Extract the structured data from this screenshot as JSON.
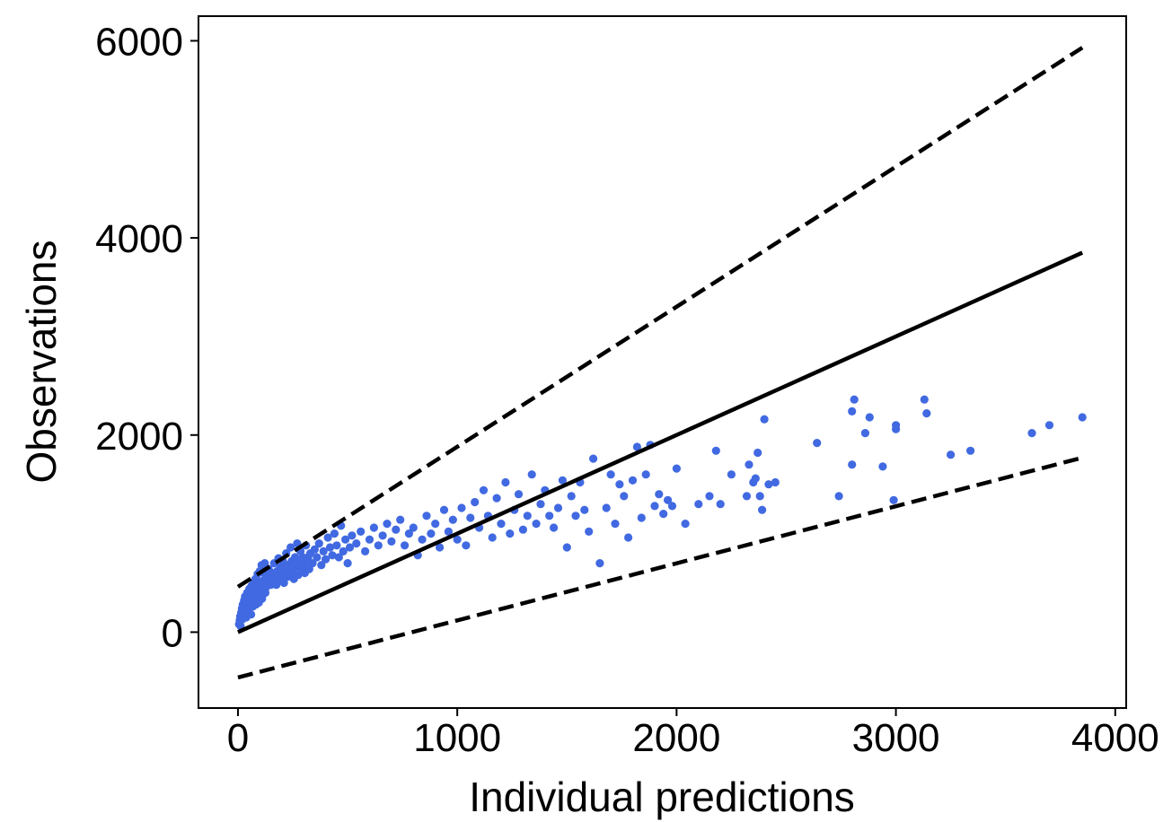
{
  "chart_data": {
    "type": "scatter",
    "title": "",
    "xlabel": "Individual predictions",
    "ylabel": "Observations",
    "xlim": [
      -180,
      4050
    ],
    "ylim": [
      -770,
      6250
    ],
    "xticks": [
      0,
      1000,
      2000,
      3000,
      4000
    ],
    "yticks": [
      0,
      2000,
      4000,
      6000
    ],
    "grid": false,
    "legend": "none",
    "colors": {
      "points": "#4169E1",
      "lines": "#000000"
    },
    "lines": [
      {
        "style": "solid",
        "x": [
          0,
          3850
        ],
        "y": [
          0,
          3850
        ]
      },
      {
        "style": "dashed",
        "x": [
          0,
          3850
        ],
        "y": [
          460,
          5930
        ]
      },
      {
        "style": "dashed",
        "x": [
          0,
          3850
        ],
        "y": [
          -460,
          1770
        ]
      }
    ],
    "points": [
      [
        5,
        80
      ],
      [
        8,
        120
      ],
      [
        10,
        160
      ],
      [
        12,
        60
      ],
      [
        15,
        200
      ],
      [
        18,
        240
      ],
      [
        20,
        130
      ],
      [
        22,
        280
      ],
      [
        25,
        180
      ],
      [
        28,
        320
      ],
      [
        30,
        220
      ],
      [
        32,
        360
      ],
      [
        35,
        260
      ],
      [
        38,
        150
      ],
      [
        40,
        300
      ],
      [
        42,
        400
      ],
      [
        45,
        200
      ],
      [
        48,
        340
      ],
      [
        50,
        250
      ],
      [
        52,
        440
      ],
      [
        55,
        300
      ],
      [
        58,
        380
      ],
      [
        60,
        180
      ],
      [
        62,
        470
      ],
      [
        65,
        350
      ],
      [
        68,
        260
      ],
      [
        70,
        420
      ],
      [
        72,
        500
      ],
      [
        75,
        320
      ],
      [
        78,
        380
      ],
      [
        80,
        540
      ],
      [
        82,
        280
      ],
      [
        85,
        450
      ],
      [
        88,
        360
      ],
      [
        90,
        590
      ],
      [
        92,
        420
      ],
      [
        95,
        300
      ],
      [
        98,
        500
      ],
      [
        100,
        620
      ],
      [
        102,
        380
      ],
      [
        105,
        460
      ],
      [
        108,
        680
      ],
      [
        110,
        340
      ],
      [
        112,
        520
      ],
      [
        115,
        420
      ],
      [
        118,
        600
      ],
      [
        120,
        480
      ],
      [
        122,
        700
      ],
      [
        125,
        400
      ],
      [
        128,
        560
      ],
      [
        130,
        460
      ],
      [
        135,
        520
      ],
      [
        140,
        640
      ],
      [
        145,
        560
      ],
      [
        150,
        480
      ],
      [
        155,
        600
      ],
      [
        160,
        520
      ],
      [
        165,
        700
      ],
      [
        170,
        580
      ],
      [
        175,
        480
      ],
      [
        180,
        620
      ],
      [
        185,
        750
      ],
      [
        190,
        540
      ],
      [
        195,
        660
      ],
      [
        200,
        580
      ],
      [
        205,
        720
      ],
      [
        210,
        500
      ],
      [
        215,
        640
      ],
      [
        220,
        800
      ],
      [
        225,
        560
      ],
      [
        230,
        680
      ],
      [
        235,
        600
      ],
      [
        240,
        860
      ],
      [
        245,
        720
      ],
      [
        250,
        620
      ],
      [
        255,
        540
      ],
      [
        260,
        760
      ],
      [
        265,
        660
      ],
      [
        270,
        900
      ],
      [
        275,
        580
      ],
      [
        280,
        700
      ],
      [
        285,
        820
      ],
      [
        290,
        640
      ],
      [
        295,
        760
      ],
      [
        300,
        680
      ],
      [
        305,
        600
      ],
      [
        310,
        880
      ],
      [
        315,
        720
      ],
      [
        320,
        760
      ],
      [
        325,
        640
      ],
      [
        330,
        800
      ],
      [
        340,
        700
      ],
      [
        350,
        840
      ],
      [
        360,
        760
      ],
      [
        370,
        900
      ],
      [
        380,
        680
      ],
      [
        390,
        820
      ],
      [
        400,
        740
      ],
      [
        410,
        960
      ],
      [
        420,
        860
      ],
      [
        430,
        780
      ],
      [
        440,
        1000
      ],
      [
        450,
        880
      ],
      [
        460,
        760
      ],
      [
        470,
        1080
      ],
      [
        480,
        820
      ],
      [
        490,
        940
      ],
      [
        500,
        700
      ],
      [
        510,
        860
      ],
      [
        520,
        980
      ],
      [
        540,
        900
      ],
      [
        560,
        1020
      ],
      [
        580,
        820
      ],
      [
        600,
        940
      ],
      [
        620,
        1060
      ],
      [
        640,
        880
      ],
      [
        660,
        980
      ],
      [
        680,
        1100
      ],
      [
        700,
        920
      ],
      [
        720,
        1040
      ],
      [
        740,
        1140
      ],
      [
        760,
        880
      ],
      [
        780,
        1000
      ],
      [
        800,
        1060
      ],
      [
        820,
        780
      ],
      [
        840,
        940
      ],
      [
        860,
        1180
      ],
      [
        880,
        1000
      ],
      [
        900,
        1100
      ],
      [
        920,
        860
      ],
      [
        940,
        1240
      ],
      [
        960,
        1020
      ],
      [
        980,
        1140
      ],
      [
        1000,
        940
      ],
      [
        1020,
        1260
      ],
      [
        1040,
        880
      ],
      [
        1060,
        1160
      ],
      [
        1080,
        1320
      ],
      [
        1100,
        1060
      ],
      [
        1120,
        1440
      ],
      [
        1140,
        1180
      ],
      [
        1160,
        960
      ],
      [
        1180,
        1360
      ],
      [
        1200,
        1100
      ],
      [
        1220,
        1520
      ],
      [
        1240,
        1000
      ],
      [
        1260,
        1240
      ],
      [
        1280,
        1400
      ],
      [
        1300,
        1040
      ],
      [
        1320,
        1180
      ],
      [
        1340,
        1600
      ],
      [
        1360,
        1100
      ],
      [
        1380,
        1300
      ],
      [
        1400,
        1440
      ],
      [
        1420,
        1180
      ],
      [
        1440,
        1060
      ],
      [
        1460,
        1260
      ],
      [
        1480,
        1540
      ],
      [
        1500,
        860
      ],
      [
        1520,
        1380
      ],
      [
        1540,
        1180
      ],
      [
        1560,
        1520
      ],
      [
        1580,
        1240
      ],
      [
        1600,
        1020
      ],
      [
        1620,
        1760
      ],
      [
        1650,
        700
      ],
      [
        1680,
        1260
      ],
      [
        1700,
        1600
      ],
      [
        1720,
        1100
      ],
      [
        1740,
        1500
      ],
      [
        1760,
        1380
      ],
      [
        1780,
        960
      ],
      [
        1800,
        1540
      ],
      [
        1820,
        1880
      ],
      [
        1840,
        1160
      ],
      [
        1860,
        1600
      ],
      [
        1880,
        1900
      ],
      [
        1900,
        1280
      ],
      [
        1920,
        1400
      ],
      [
        1940,
        1200
      ],
      [
        1960,
        1340
      ],
      [
        1980,
        1280
      ],
      [
        2000,
        1660
      ],
      [
        2040,
        1100
      ],
      [
        2100,
        1300
      ],
      [
        2150,
        1380
      ],
      [
        2180,
        1840
      ],
      [
        2200,
        1300
      ],
      [
        2250,
        1600
      ],
      [
        2320,
        1380
      ],
      [
        2330,
        1700
      ],
      [
        2350,
        1520
      ],
      [
        2360,
        1560
      ],
      [
        2370,
        1820
      ],
      [
        2380,
        1380
      ],
      [
        2390,
        1240
      ],
      [
        2400,
        2160
      ],
      [
        2420,
        1500
      ],
      [
        2450,
        1520
      ],
      [
        2640,
        1920
      ],
      [
        2740,
        1380
      ],
      [
        2800,
        2240
      ],
      [
        2810,
        2360
      ],
      [
        2800,
        1700
      ],
      [
        2860,
        2020
      ],
      [
        2880,
        2180
      ],
      [
        2940,
        1680
      ],
      [
        2990,
        1340
      ],
      [
        3000,
        2060
      ],
      [
        3000,
        2100
      ],
      [
        3130,
        2360
      ],
      [
        3140,
        2220
      ],
      [
        3250,
        1800
      ],
      [
        3340,
        1840
      ],
      [
        3620,
        2020
      ],
      [
        3700,
        2100
      ],
      [
        3850,
        2180
      ]
    ]
  }
}
